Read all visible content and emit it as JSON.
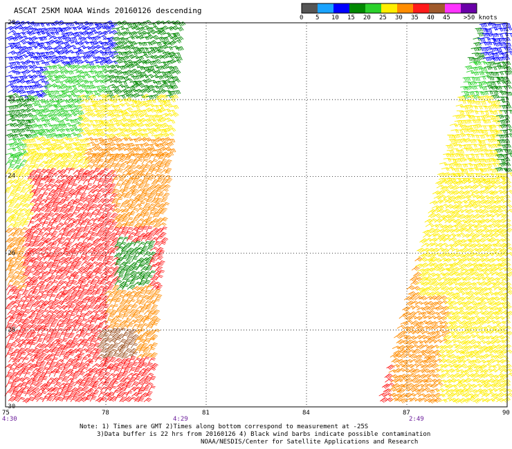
{
  "title": "ASCAT 25KM NOAA Winds 20160126 descending",
  "colorbar": {
    "labels": [
      "0",
      "5",
      "10",
      "15",
      "20",
      "25",
      "30",
      "35",
      "40",
      "45",
      ">50 knots"
    ],
    "colors": [
      "#555555",
      "#1aa3ff",
      "#0000ff",
      "#008800",
      "#2bd12b",
      "#ffee00",
      "#ff8c00",
      "#ff1a1a",
      "#a05a2c",
      "#ff33ff",
      "#6a00a8"
    ]
  },
  "axes": {
    "lat_labels": [
      "-20",
      "-22",
      "-24",
      "-26",
      "-28",
      "-30"
    ],
    "lon_labels": [
      "75",
      "78",
      "81",
      "84",
      "87",
      "90"
    ],
    "time_labels": [
      "4:30",
      "4:29",
      "2:49"
    ]
  },
  "notes": {
    "line1": "Note: 1) Times are GMT 2)Times along bottom correspond to measurement at -25S",
    "line2": "3)Data buffer is 22 hrs from 20160126 4) Black wind barbs indicate possible contamination",
    "line3": "NOAA/NESDIS/Center for Satellite Applications and Research"
  },
  "map_data": {
    "lon_range": [
      75,
      90
    ],
    "lat_range": [
      -20,
      -30
    ],
    "swaths": [
      {
        "name": "west",
        "lon_edges_north": [
          75,
          80.2
        ],
        "lon_edges_south": [
          75,
          79.3
        ]
      },
      {
        "name": "east",
        "lon_edges_north": [
          89.1,
          90
        ],
        "lon_edges_south": [
          86.1,
          90
        ]
      }
    ]
  }
}
